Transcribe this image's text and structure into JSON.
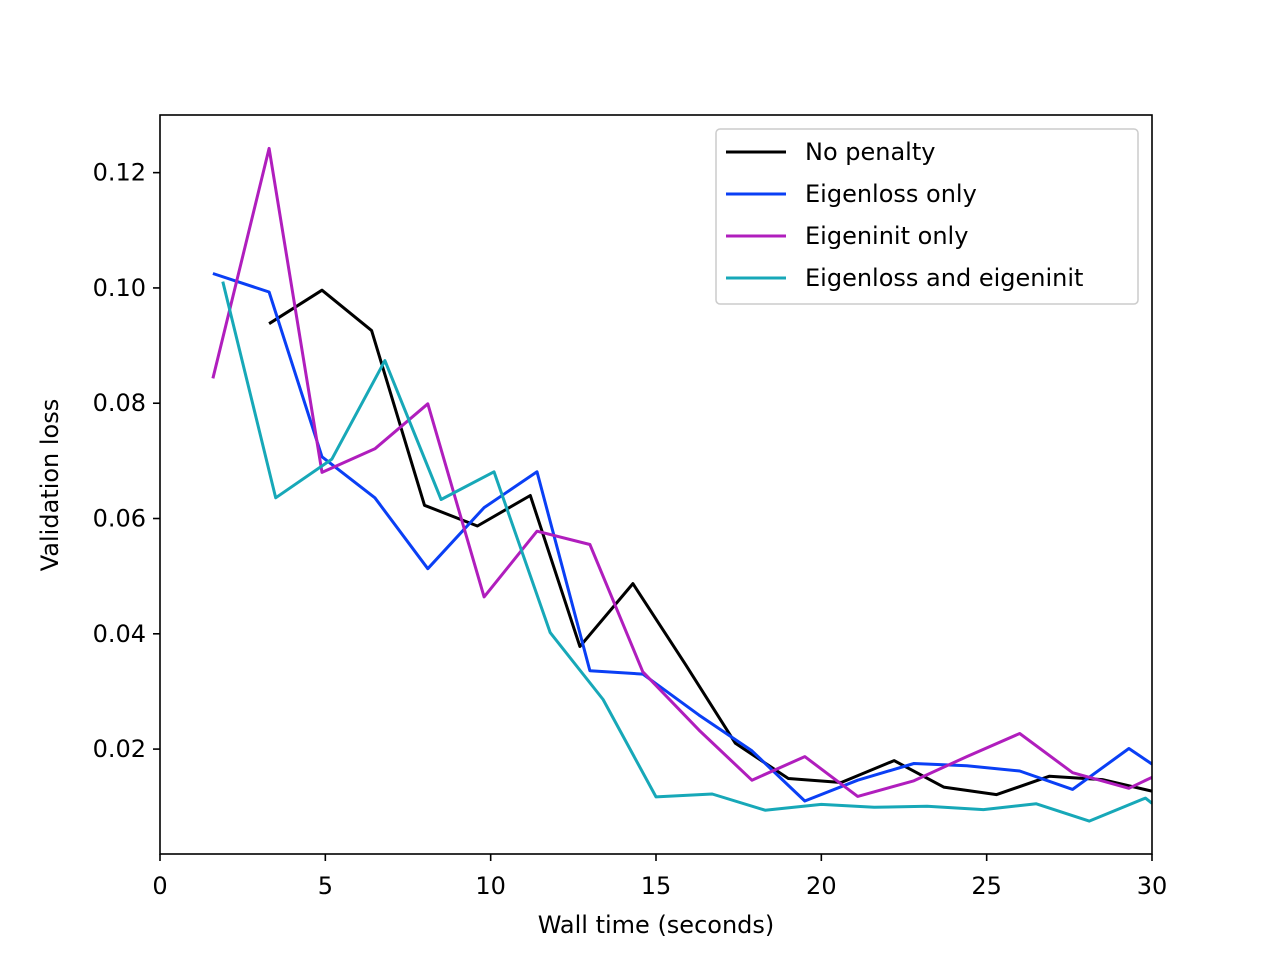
{
  "chart_data": {
    "type": "line",
    "title": "",
    "xlabel": "Wall time (seconds)",
    "ylabel": "Validation loss",
    "xlim": [
      0,
      30
    ],
    "ylim": [
      0.0018,
      0.13
    ],
    "xticks": [
      0,
      5,
      10,
      15,
      20,
      25,
      30
    ],
    "xtick_labels": [
      "0",
      "5",
      "10",
      "15",
      "20",
      "25",
      "30"
    ],
    "yticks": [
      0.02,
      0.04,
      0.06,
      0.08,
      0.1,
      0.12
    ],
    "ytick_labels": [
      "0.02",
      "0.04",
      "0.06",
      "0.08",
      "0.10",
      "0.12"
    ],
    "grid": false,
    "legend_position": "top-right",
    "series": [
      {
        "name": "No penalty",
        "color": "#000000",
        "x": [
          3.3,
          4.9,
          6.4,
          8.0,
          9.6,
          11.2,
          12.7,
          14.3,
          15.9,
          17.4,
          19.0,
          20.6,
          22.2,
          23.7,
          25.3,
          26.9,
          28.5,
          30.0
        ],
        "y": [
          0.0938,
          0.0996,
          0.0926,
          0.0623,
          0.0587,
          0.064,
          0.0378,
          0.0487,
          0.0346,
          0.021,
          0.0149,
          0.0142,
          0.018,
          0.0134,
          0.0121,
          0.0153,
          0.0147,
          0.0127
        ]
      },
      {
        "name": "Eigenloss only",
        "color": "#0a3ff5",
        "x": [
          1.6,
          3.3,
          4.9,
          6.5,
          8.1,
          9.8,
          11.4,
          13.0,
          14.6,
          16.3,
          17.9,
          19.5,
          21.1,
          22.8,
          24.4,
          26.0,
          27.6,
          29.3,
          30.0
        ],
        "y": [
          0.1025,
          0.0993,
          0.0707,
          0.0636,
          0.0513,
          0.0619,
          0.0681,
          0.0336,
          0.033,
          0.0259,
          0.0197,
          0.011,
          0.0146,
          0.0175,
          0.0171,
          0.0162,
          0.013,
          0.0201,
          0.0174
        ]
      },
      {
        "name": "Eigeninit only",
        "color": "#b01ebd",
        "x": [
          1.6,
          3.3,
          4.9,
          6.5,
          8.1,
          9.8,
          11.4,
          13.0,
          14.6,
          16.3,
          17.9,
          19.5,
          21.1,
          22.8,
          24.4,
          26.0,
          27.6,
          29.3,
          30.0
        ],
        "y": [
          0.0843,
          0.1242,
          0.068,
          0.0721,
          0.0799,
          0.0464,
          0.0578,
          0.0555,
          0.0334,
          0.0233,
          0.0146,
          0.0187,
          0.0118,
          0.0145,
          0.0187,
          0.0227,
          0.0159,
          0.0132,
          0.0151
        ]
      },
      {
        "name": "Eigenloss and eigeninit",
        "color": "#17a8b8",
        "x": [
          1.9,
          3.5,
          5.2,
          6.8,
          8.5,
          10.1,
          11.8,
          13.4,
          15.0,
          16.7,
          18.3,
          20.0,
          21.6,
          23.2,
          24.9,
          26.5,
          28.1,
          29.8,
          30.0
        ],
        "y": [
          0.1011,
          0.0636,
          0.0703,
          0.0874,
          0.0633,
          0.0681,
          0.0402,
          0.0286,
          0.0117,
          0.0122,
          0.0094,
          0.0104,
          0.0099,
          0.0101,
          0.0095,
          0.0105,
          0.0075,
          0.0115,
          0.0106
        ]
      }
    ]
  }
}
